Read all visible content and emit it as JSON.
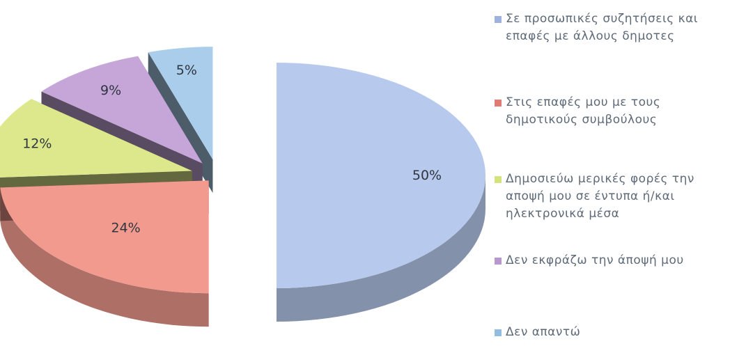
{
  "chart_data": {
    "type": "pie",
    "style": "3d-exploded",
    "categories": [
      "Σε προσωπικές συζητήσεις και επαφές με άλλους δημοτες",
      "Στις επαφές μου με τους δημοτικούς συμβούλους",
      "Δημοσιεύω μερικές φορές την αποψή μου σε έντυπα ή/και ηλεκτρονικά μέσα",
      "Δεν εκφράζω την άποψή μου",
      "Δεν απαντώ"
    ],
    "values": [
      50,
      24,
      12,
      9,
      5
    ],
    "data_labels": [
      "50%",
      "24%",
      "12%",
      "9%",
      "5%"
    ],
    "colors": [
      "#b7c9ec",
      "#f29a8e",
      "#dde88c",
      "#c6a6d8",
      "#a9cdea"
    ],
    "legend_position": "right"
  },
  "legend": {
    "items": [
      {
        "label": "Σε προσωπικές συζητήσεις και\nεπαφές με άλλους δημοτες",
        "color": "#9fb2de"
      },
      {
        "label": "Στις επαφές μου με τους\nδημοτικούς συμβούλους",
        "color": "#e07a72"
      },
      {
        "label": "Δημοσιεύω μερικές φορές την\nαποψή μου σε έντυπα ή/και\nηλεκτρονικά μέσα",
        "color": "#d6e27c"
      },
      {
        "label": "Δεν εκφράζω την άποψή μου",
        "color": "#b898cc"
      },
      {
        "label": "Δεν απαντώ",
        "color": "#93bde0"
      }
    ]
  }
}
